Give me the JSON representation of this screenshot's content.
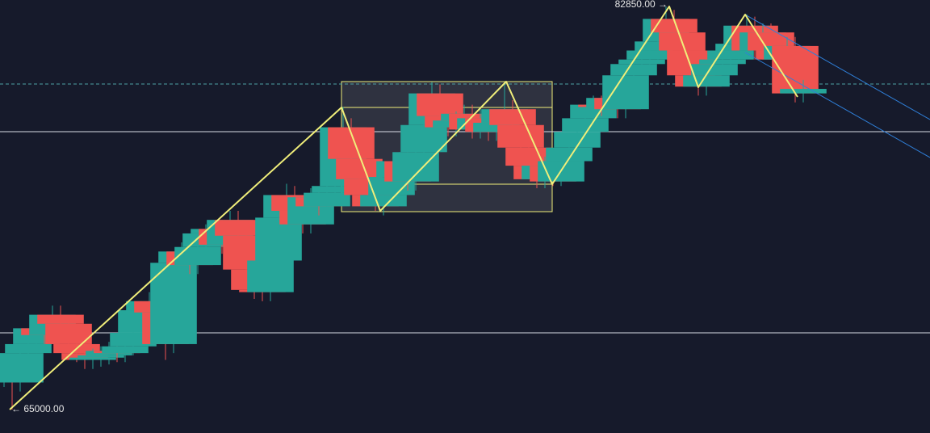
{
  "chart_data": {
    "type": "candlestick",
    "xlim": [
      -0.5,
      114.7
    ],
    "ylim": [
      63963,
      83136
    ],
    "colors": {
      "up": "#26a69a",
      "down": "#ef5350",
      "drawing": "#f0ee7a",
      "level": "#d8dce6",
      "current": "#4fa3a5",
      "channel": "#2f7fd8",
      "box": "#3a3d4a"
    },
    "open": [
      66400,
      66800,
      66200,
      67500,
      67900,
      68600,
      68300,
      69200,
      68800,
      67900,
      67500,
      67200,
      67300,
      67400,
      67600,
      67500,
      67800,
      68400,
      69400,
      69800,
      69300,
      67900,
      71500,
      72000,
      71400,
      72200,
      72800,
      73000,
      72300,
      73400,
      72700,
      71200,
      70300,
      70200,
      71600,
      73500,
      74500,
      73800,
      73200,
      74400,
      74000,
      74600,
      74900,
      77500,
      76100,
      75200,
      74500,
      74000,
      74500,
      75300,
      76000,
      75100,
      76400,
      77600,
      79000,
      78000,
      77500,
      77800,
      78100,
      77400,
      77900,
      77300,
      77700,
      78300,
      77600,
      76600,
      75800,
      75200,
      75800,
      75100,
      76000,
      76600,
      77300,
      77900,
      78500,
      78400,
      78800,
      78300,
      79800,
      80300,
      80500,
      80900,
      81300,
      82300,
      81700,
      80900,
      79800,
      79300,
      79800,
      80300,
      80500,
      80900,
      81200,
      82000,
      80900,
      81700,
      80900,
      80500,
      81100,
      79000
    ],
    "high": [
      67200,
      67200,
      67900,
      68300,
      69000,
      69000,
      69600,
      69600,
      69200,
      68300,
      67900,
      67700,
      67800,
      68000,
      68000,
      68200,
      68800,
      69800,
      70200,
      70200,
      69700,
      71900,
      72400,
      72400,
      72600,
      73200,
      73400,
      73400,
      73800,
      73800,
      73100,
      71600,
      70700,
      72000,
      73900,
      75000,
      74900,
      74200,
      74800,
      74800,
      75000,
      75300,
      78400,
      77900,
      76500,
      75600,
      74900,
      74900,
      75700,
      76400,
      76400,
      76800,
      78000,
      79500,
      79400,
      78400,
      78200,
      78500,
      78500,
      78300,
      78300,
      78100,
      79500,
      78700,
      78000,
      77000,
      76200,
      76200,
      76200,
      76400,
      77000,
      77700,
      78300,
      78900,
      78900,
      79200,
      79200,
      80200,
      80700,
      80900,
      81300,
      81700,
      82850,
      82700,
      82100,
      81300,
      80200,
      80200,
      80700,
      80900,
      81300,
      81600,
      82500,
      82400,
      82100,
      82100,
      81300,
      81500,
      81500,
      79600
    ],
    "low": [
      66000,
      65000,
      65800,
      67100,
      67500,
      67900,
      67900,
      68400,
      67500,
      67100,
      66800,
      66800,
      66900,
      67000,
      67100,
      67100,
      67400,
      68000,
      69000,
      68900,
      67200,
      67500,
      71100,
      71000,
      71000,
      71800,
      72400,
      71900,
      71900,
      72300,
      70800,
      69900,
      69800,
      69800,
      71200,
      73100,
      73400,
      72800,
      72800,
      73600,
      73600,
      74200,
      74500,
      75700,
      74800,
      74100,
      73800,
      73600,
      74100,
      74900,
      74700,
      74700,
      76000,
      77200,
      77600,
      77100,
      77100,
      77400,
      77000,
      77000,
      76900,
      76900,
      77300,
      77200,
      76200,
      75400,
      74800,
      74800,
      74900,
      74900,
      75600,
      76200,
      76900,
      77500,
      78000,
      78000,
      77900,
      77900,
      79400,
      79900,
      80100,
      80500,
      80900,
      81300,
      80500,
      79400,
      78900,
      78900,
      79400,
      79900,
      80100,
      80500,
      80800,
      80500,
      80500,
      80500,
      80100,
      80100,
      78600,
      78600
    ],
    "close": [
      66800,
      66200,
      67500,
      67900,
      68600,
      68300,
      69200,
      68800,
      67900,
      67500,
      67200,
      67300,
      67400,
      67600,
      67500,
      67800,
      68400,
      69400,
      69800,
      69300,
      67900,
      71500,
      72000,
      71400,
      72200,
      72800,
      73000,
      72300,
      73400,
      72700,
      71200,
      70300,
      70200,
      71600,
      73500,
      74500,
      73800,
      73200,
      74400,
      74000,
      74600,
      74900,
      77500,
      76100,
      75200,
      74500,
      74000,
      74500,
      75300,
      76000,
      75100,
      76400,
      77600,
      79000,
      78000,
      77500,
      77800,
      78100,
      77400,
      77900,
      77300,
      77700,
      78300,
      77600,
      76600,
      75800,
      75200,
      75800,
      75100,
      76000,
      76600,
      77300,
      77900,
      78500,
      78400,
      78800,
      78300,
      79800,
      80300,
      80500,
      80900,
      81300,
      82300,
      81700,
      80900,
      79800,
      79300,
      79800,
      80300,
      80500,
      80900,
      81200,
      82000,
      80900,
      81700,
      80900,
      80500,
      81100,
      79000,
      79200
    ],
    "zigzag": {
      "x": [
        0.7,
        41.8,
        46.6,
        62.2,
        67.9,
        82.4,
        86.0,
        91.8,
        98.3
      ],
      "values": [
        65000,
        78378,
        73799,
        79523,
        74980,
        82850,
        79273,
        82492,
        78843
      ]
    },
    "range_box": {
      "x": [
        41.8,
        67.9
      ],
      "top": 79523,
      "bottom": 73764,
      "levels": [
        78378,
        74980
      ]
    },
    "channel": [
      {
        "x": [
          91.8,
          114.7
        ],
        "values": [
          82492,
          77842
        ]
      },
      {
        "x": [
          91.8,
          114.7
        ],
        "values": [
          80811,
          76161
        ]
      }
    ],
    "levels": [
      77305,
      68398
    ],
    "current_price": 79415,
    "price_labels": [
      {
        "x": 82.4,
        "value": 82850,
        "label": "82850.00 →",
        "side": "left"
      },
      {
        "x": 0.7,
        "value": 65000,
        "label": "← 65000.00",
        "side": "right"
      }
    ]
  }
}
